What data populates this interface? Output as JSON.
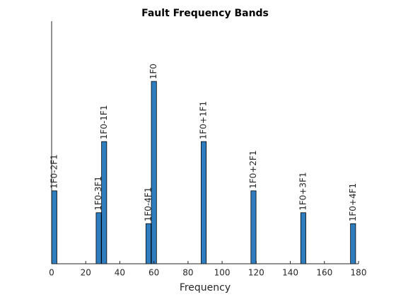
{
  "chart_data": {
    "type": "bar",
    "title": "Fault Frequency Bands",
    "x_label": "Frequency",
    "categories": [
      "1F0-2F1",
      "1F0-3F1",
      "1F0-1F1",
      "1F0-4F1",
      "1F0",
      "1F0+1F1",
      "1F0+2F1",
      "1F0+3F1",
      "1F0+4F1"
    ],
    "x": [
      1.6,
      27.6,
      30.8,
      56.8,
      60,
      89.2,
      118.4,
      147.6,
      176.8
    ],
    "values": [
      0.4,
      0.28,
      0.67,
      0.22,
      1,
      0.67,
      0.4,
      0.28,
      0.22
    ],
    "color": "#2e7ebf",
    "xlim": [
      0,
      180
    ],
    "xticks": [
      0,
      20,
      40,
      60,
      80,
      100,
      120,
      140,
      160,
      180
    ],
    "ylim": [
      0,
      1.33
    ],
    "grid": false
  }
}
